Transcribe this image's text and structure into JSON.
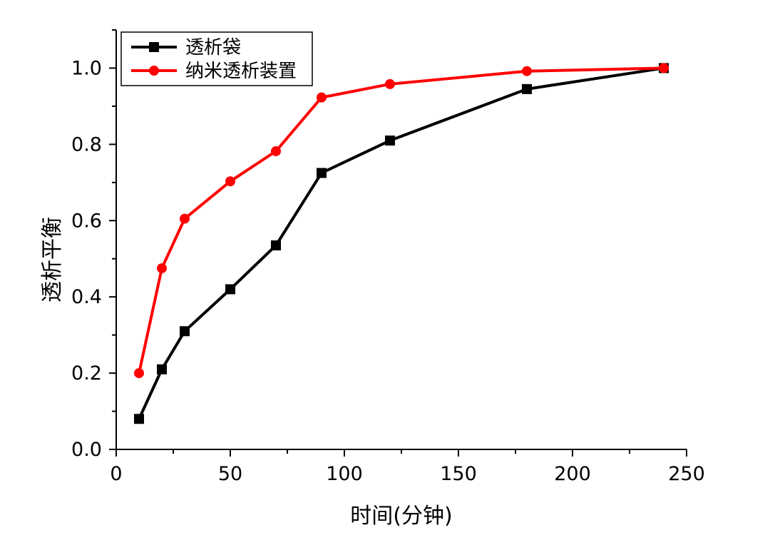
{
  "chart_data": {
    "type": "line",
    "title": "",
    "xlabel": "时间(分钟)",
    "ylabel": "透析平衡",
    "xlim": [
      0,
      250
    ],
    "ylim": [
      0.0,
      1.1
    ],
    "x_ticks": [
      0,
      50,
      100,
      150,
      200,
      250
    ],
    "x_tick_labels": [
      "0",
      "50",
      "100",
      "150",
      "200",
      "250"
    ],
    "y_ticks": [
      0.0,
      0.2,
      0.4,
      0.6,
      0.8,
      1.0
    ],
    "y_tick_labels": [
      "0.0",
      "0.2",
      "0.4",
      "0.6",
      "0.8",
      "1.0"
    ],
    "grid": false,
    "legend_position": "top-left",
    "series": [
      {
        "name": "透析袋",
        "color": "#000000",
        "marker": "square",
        "x": [
          10,
          20,
          30,
          50,
          70,
          90,
          120,
          180,
          240
        ],
        "values": [
          0.08,
          0.21,
          0.31,
          0.42,
          0.535,
          0.725,
          0.81,
          0.945,
          1.0
        ]
      },
      {
        "name": "纳米透析装置",
        "color": "#ff0000",
        "marker": "circle",
        "x": [
          10,
          20,
          30,
          50,
          70,
          90,
          120,
          180,
          240
        ],
        "values": [
          0.2,
          0.475,
          0.605,
          0.703,
          0.782,
          0.923,
          0.958,
          0.992,
          1.0
        ]
      }
    ]
  }
}
